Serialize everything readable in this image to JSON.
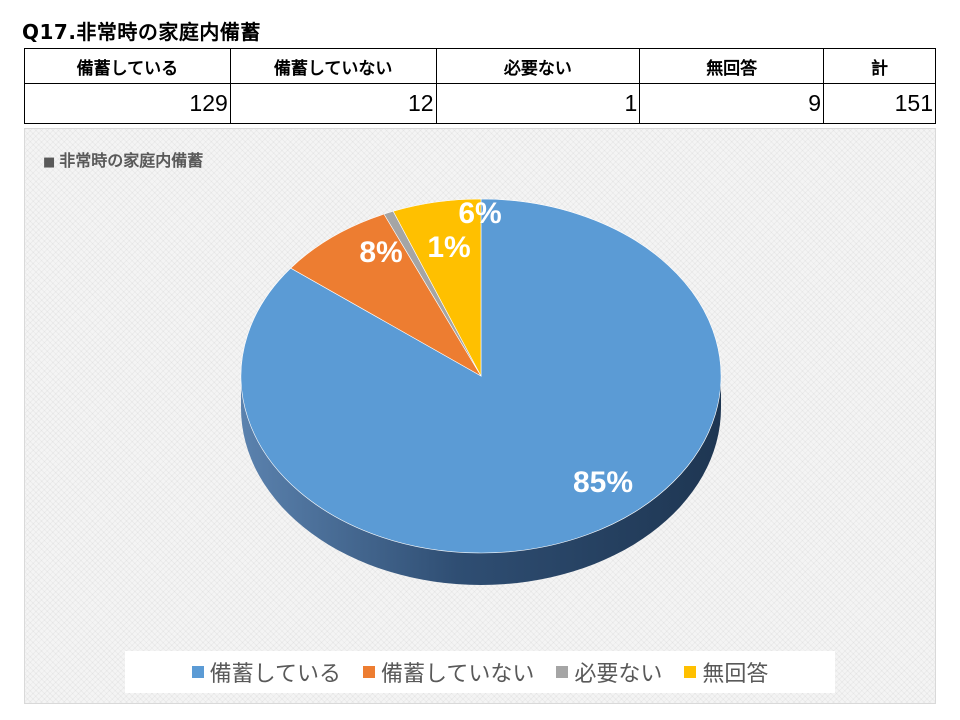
{
  "page": {
    "title": "Q17.非常時の家庭内備蓄"
  },
  "table": {
    "headers": [
      "備蓄している",
      "備蓄していない",
      "必要ない",
      "無回答",
      "計"
    ],
    "values": [
      "129",
      "12",
      "1",
      "9",
      "151"
    ]
  },
  "chart_data": {
    "type": "pie",
    "title": "非常時の家庭内備蓄",
    "title_marker": "■",
    "categories": [
      "備蓄している",
      "備蓄していない",
      "必要ない",
      "無回答"
    ],
    "values": [
      129,
      12,
      1,
      9
    ],
    "data_labels": [
      "85%",
      "8%",
      "1%",
      "6%"
    ],
    "colors": [
      "#5B9BD5",
      "#ED7D31",
      "#A5A5A5",
      "#FFC000"
    ],
    "legend_position": "bottom",
    "style": "3d"
  }
}
